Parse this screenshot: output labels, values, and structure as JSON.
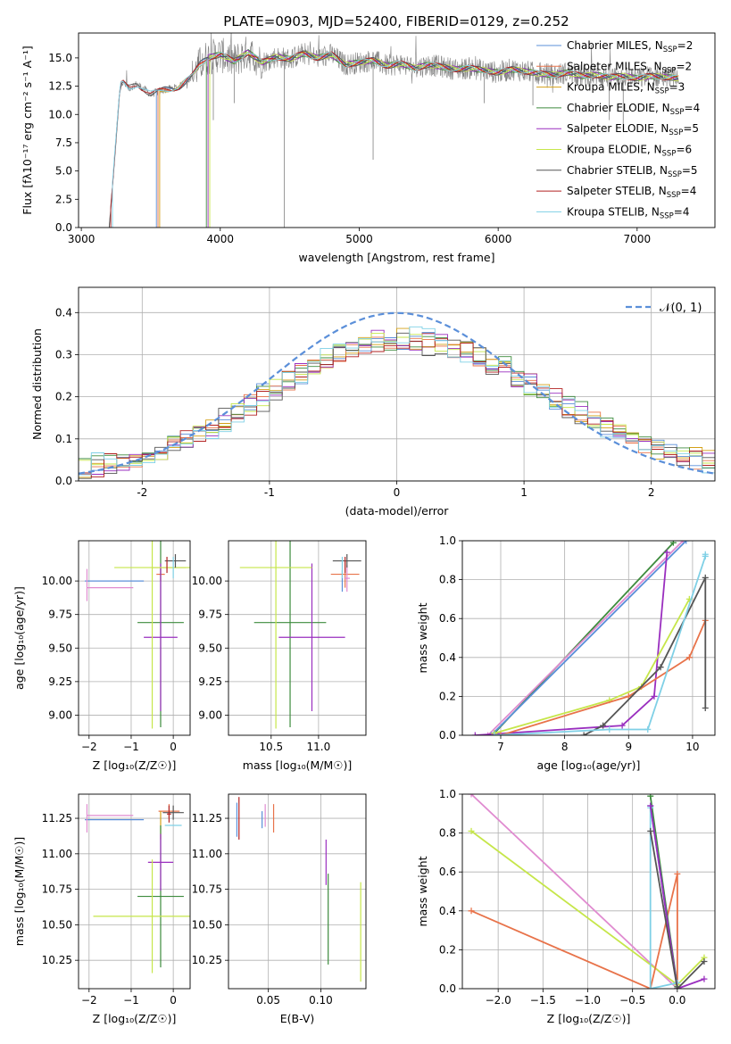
{
  "figure_title": "PLATE=0903, MJD=52400, FIBERID=0129, z=0.252",
  "model_colors": {
    "Chabrier MILES": "#5b8fd9",
    "Salpeter MILES": "#e8734a",
    "Kroupa MILES": "#d4a017",
    "Chabrier ELODIE": "#3d8b3d",
    "Salpeter ELODIE": "#9a2fbf",
    "Kroupa ELODIE": "#c6e64a",
    "Chabrier STELIB": "#555555",
    "Salpeter STELIB": "#b22222",
    "Kroupa STELIB": "#7fd0e6"
  },
  "chart_data": [
    {
      "id": "spectrum",
      "type": "line",
      "xlabel": "wavelength [Angstrom, rest frame]",
      "ylabel": "Flux [fλ10⁻¹⁷ erg cm⁻² s⁻¹ A⁻¹]",
      "xlim": [
        2980,
        7560
      ],
      "ylim": [
        0,
        17.2
      ],
      "xticks": [
        3000,
        4000,
        5000,
        6000,
        7000
      ],
      "yticks": [
        0.0,
        2.5,
        5.0,
        7.5,
        10.0,
        12.5,
        15.0
      ],
      "ytick_labels": [
        "0.0",
        "2.5",
        "5.0",
        "7.5",
        "10.0",
        "12.5",
        "15.0"
      ],
      "grid": false,
      "legend_position": "right",
      "legend": [
        {
          "label": "Chabrier MILES, N",
          "sub": "SSP",
          "suffix": "=2",
          "color": "#5b8fd9"
        },
        {
          "label": "Salpeter MILES, N",
          "sub": "SSP",
          "suffix": "=2",
          "color": "#e8734a"
        },
        {
          "label": "Kroupa MILES, N",
          "sub": "SSP",
          "suffix": "=3",
          "color": "#d4a017"
        },
        {
          "label": "Chabrier ELODIE, N",
          "sub": "SSP",
          "suffix": "=4",
          "color": "#3d8b3d"
        },
        {
          "label": "Salpeter ELODIE, N",
          "sub": "SSP",
          "suffix": "=5",
          "color": "#9a2fbf"
        },
        {
          "label": "Kroupa ELODIE, N",
          "sub": "SSP",
          "suffix": "=6",
          "color": "#c6e64a"
        },
        {
          "label": "Chabrier STELIB, N",
          "sub": "SSP",
          "suffix": "=5",
          "color": "#555555"
        },
        {
          "label": "Salpeter STELIB, N",
          "sub": "SSP",
          "suffix": "=4",
          "color": "#b22222"
        },
        {
          "label": "Kroupa STELIB, N",
          "sub": "SSP",
          "suffix": "=4",
          "color": "#7fd0e6"
        }
      ],
      "data_start_wavelength": 3200,
      "model_start_wavelengths": {
        "MILES": 3540,
        "ELODIE": 3900,
        "STELIB": 3200
      },
      "continuum_x": [
        3200,
        3280,
        3300,
        3340,
        3400,
        3500,
        3600,
        3700,
        3800,
        3850,
        3900,
        4000,
        4100,
        4200,
        4300,
        4400,
        4500,
        4600,
        4700,
        4800,
        4900,
        5000,
        5100,
        5200,
        5300,
        5400,
        5500,
        5600,
        5700,
        5800,
        5900,
        6000,
        6100,
        6200,
        6300,
        6400,
        6500,
        6600,
        6700,
        6800,
        6900,
        7000,
        7100,
        7200,
        7300
      ],
      "continuum_y": [
        0.0,
        12.6,
        12.8,
        12.3,
        12.7,
        11.8,
        12.2,
        12.4,
        13.4,
        14.4,
        15.0,
        15.3,
        14.7,
        15.5,
        14.6,
        15.1,
        14.9,
        15.4,
        15.0,
        15.3,
        14.4,
        14.6,
        14.8,
        14.3,
        14.5,
        14.1,
        14.4,
        14.2,
        14.0,
        14.1,
        13.9,
        13.7,
        14.0,
        13.8,
        13.6,
        13.5,
        13.7,
        13.4,
        13.5,
        13.3,
        13.4,
        13.2,
        13.4,
        13.3,
        13.2
      ],
      "dips": [
        {
          "x": 4460,
          "y": 0.0
        },
        {
          "x": 5100,
          "y": 6.0
        },
        {
          "x": 3950,
          "y": 9.5
        },
        {
          "x": 4100,
          "y": 11.0
        },
        {
          "x": 5900,
          "y": 11.0
        },
        {
          "x": 6250,
          "y": 10.8
        },
        {
          "x": 6800,
          "y": 9.5
        },
        {
          "x": 6900,
          "y": 8.5
        }
      ]
    },
    {
      "id": "residual_hist",
      "type": "histogram",
      "xlabel": "(data-model)/error",
      "ylabel": "Normed distribution",
      "xlim": [
        -2.5,
        2.5
      ],
      "ylim": [
        0,
        0.46
      ],
      "xticks": [
        -2,
        -1,
        0,
        1,
        2
      ],
      "yticks": [
        0.0,
        0.1,
        0.2,
        0.3,
        0.4
      ],
      "ytick_labels": [
        "0.0",
        "0.1",
        "0.2",
        "0.3",
        "0.4"
      ],
      "grid": true,
      "legend_position": "top-right",
      "legend": [
        {
          "label": "𝒩(0, 1)",
          "style": "dashed",
          "color": "#5b8fd9"
        }
      ],
      "bin_edges_start": -2.5,
      "bin_width": 0.1,
      "n_bins": 50,
      "reference_curve": "normal(0, 1) density",
      "base_distribution": [
        0.03,
        0.034,
        0.04,
        0.045,
        0.052,
        0.06,
        0.07,
        0.082,
        0.095,
        0.11,
        0.125,
        0.142,
        0.16,
        0.18,
        0.2,
        0.22,
        0.24,
        0.258,
        0.275,
        0.29,
        0.302,
        0.312,
        0.32,
        0.328,
        0.334,
        0.338,
        0.336,
        0.332,
        0.326,
        0.318,
        0.309,
        0.297,
        0.283,
        0.267,
        0.25,
        0.232,
        0.214,
        0.196,
        0.178,
        0.16,
        0.143,
        0.127,
        0.112,
        0.099,
        0.087,
        0.077,
        0.068,
        0.06,
        0.053,
        0.047
      ],
      "series_offsets": [
        {
          "color": "#5b8fd9",
          "shift": 0.01
        },
        {
          "color": "#e8734a",
          "shift": 0.004
        },
        {
          "color": "#d4a017",
          "shift": -0.002
        },
        {
          "color": "#3d8b3d",
          "shift": 0.008
        },
        {
          "color": "#9a2fbf",
          "shift": -0.006
        },
        {
          "color": "#c6e64a",
          "shift": 0.002
        },
        {
          "color": "#555555",
          "shift": -0.01
        },
        {
          "color": "#b22222",
          "shift": 0.0
        },
        {
          "color": "#7fd0e6",
          "shift": 0.012
        }
      ]
    },
    {
      "id": "age_vs_Z",
      "type": "errorbar",
      "xlabel": "Z [log₁₀(Z/Z☉)]",
      "ylabel": "age  [log₁₀(age/yr)]",
      "xlim": [
        -2.25,
        0.4
      ],
      "ylim": [
        8.85,
        10.3
      ],
      "xticks": [
        -2,
        -1,
        0
      ],
      "xtick_labels": [
        "−2",
        "−1",
        "0"
      ],
      "yticks": [
        9.0,
        9.25,
        9.5,
        9.75,
        10.0
      ],
      "ytick_labels": [
        "9.00",
        "9.25",
        "9.50",
        "9.75",
        "10.00"
      ],
      "grid": true,
      "points": [
        {
          "x": -1.4,
          "y": 10.0,
          "xerr": 0.7,
          "yerr": 0.0,
          "color": "#5b8fd9"
        },
        {
          "x": -1.5,
          "y": 9.95,
          "xerr": 0.55,
          "yerr": 0.0,
          "color": "#e08bd0"
        },
        {
          "x": -2.05,
          "y": 9.97,
          "xerr": 0.0,
          "yerr": 0.12,
          "color": "#e08bd0"
        },
        {
          "x": -0.3,
          "y": 10.05,
          "xerr": 0.1,
          "yerr": 0.05,
          "color": "#e8734a"
        },
        {
          "x": -0.1,
          "y": 10.1,
          "xerr": 0.4,
          "yerr": 0.0,
          "color": "#d4a017"
        },
        {
          "x": -0.3,
          "y": 9.69,
          "xerr": 0.55,
          "yerr": 0.78,
          "color": "#3d8b3d"
        },
        {
          "x": -0.3,
          "y": 9.58,
          "xerr": 0.4,
          "yerr": 0.55,
          "color": "#9a2fbf"
        },
        {
          "x": -0.5,
          "y": 10.1,
          "xerr": 0.9,
          "yerr": 1.2,
          "color": "#c6e64a"
        },
        {
          "x": 0.05,
          "y": 10.15,
          "xerr": 0.25,
          "yerr": 0.05,
          "color": "#555555"
        },
        {
          "x": -0.15,
          "y": 10.12,
          "xerr": 0.0,
          "yerr": 0.06,
          "color": "#b22222"
        },
        {
          "x": 0.0,
          "y": 10.1,
          "xerr": 0.0,
          "yerr": 0.08,
          "color": "#7fd0e6"
        }
      ]
    },
    {
      "id": "age_vs_mass",
      "type": "errorbar",
      "xlabel": "mass [log₁₀(M/M☉)]",
      "ylabel": "",
      "xlim": [
        10.05,
        11.5
      ],
      "ylim": [
        8.85,
        10.3
      ],
      "xticks": [
        10.5,
        11.0
      ],
      "xtick_labels": [
        "10.5",
        "11.0"
      ],
      "yticks": [
        9.0,
        9.25,
        9.5,
        9.75,
        10.0
      ],
      "ytick_labels": [
        "9.00",
        "9.25",
        "9.50",
        "9.75",
        "10.00"
      ],
      "grid": true,
      "points": [
        {
          "x": 11.25,
          "y": 10.0,
          "xerr": 0.0,
          "yerr": 0.08,
          "color": "#5b8fd9"
        },
        {
          "x": 11.28,
          "y": 10.05,
          "xerr": 0.15,
          "yerr": 0.1,
          "color": "#e8734a"
        },
        {
          "x": 11.3,
          "y": 10.02,
          "xerr": 0.03,
          "yerr": 0.1,
          "color": "#e08bd0"
        },
        {
          "x": 10.7,
          "y": 9.69,
          "xerr": 0.38,
          "yerr": 0.78,
          "color": "#3d8b3d"
        },
        {
          "x": 10.93,
          "y": 9.58,
          "xerr": 0.35,
          "yerr": 0.55,
          "color": "#9a2fbf"
        },
        {
          "x": 10.55,
          "y": 10.1,
          "xerr": 0.38,
          "yerr": 1.2,
          "color": "#c6e64a"
        },
        {
          "x": 11.3,
          "y": 10.15,
          "xerr": 0.15,
          "yerr": 0.05,
          "color": "#555555"
        },
        {
          "x": 11.28,
          "y": 10.12,
          "xerr": 0.0,
          "yerr": 0.06,
          "color": "#b22222"
        },
        {
          "x": 11.25,
          "y": 10.1,
          "xerr": 0.0,
          "yerr": 0.08,
          "color": "#7fd0e6"
        }
      ]
    },
    {
      "id": "mass_weight_vs_age",
      "type": "line",
      "xlabel": "age  [log₁₀(age/yr)]",
      "ylabel": "mass weight",
      "xlim": [
        6.4,
        10.35
      ],
      "ylim": [
        0.0,
        1.0
      ],
      "xticks": [
        7,
        8,
        9,
        10
      ],
      "yticks": [
        0.0,
        0.2,
        0.4,
        0.6,
        0.8,
        1.0
      ],
      "ytick_labels": [
        "0.0",
        "0.2",
        "0.4",
        "0.6",
        "0.8",
        "1.0"
      ],
      "grid": true,
      "series": [
        {
          "color": "#3d8b3d",
          "x": [
            6.9,
            9.7
          ],
          "y": [
            0.01,
            0.99
          ]
        },
        {
          "color": "#e08bd0",
          "x": [
            6.8,
            9.85
          ],
          "y": [
            0.0,
            1.0
          ]
        },
        {
          "color": "#5b8fd9",
          "x": [
            6.85,
            9.9
          ],
          "y": [
            0.0,
            1.0
          ]
        },
        {
          "color": "#9a2fbf",
          "x": [
            6.6,
            8.9,
            9.4,
            9.6
          ],
          "y": [
            0.0,
            0.05,
            0.2,
            0.94
          ]
        },
        {
          "color": "#c6e64a",
          "x": [
            6.9,
            8.7,
            9.2,
            9.95
          ],
          "y": [
            0.01,
            0.18,
            0.25,
            0.7
          ]
        },
        {
          "color": "#e8734a",
          "x": [
            7.0,
            9.0,
            9.95,
            10.2
          ],
          "y": [
            0.0,
            0.2,
            0.4,
            0.59
          ]
        },
        {
          "color": "#555555",
          "x": [
            8.3,
            8.6,
            9.5,
            10.2,
            10.2
          ],
          "y": [
            0.0,
            0.05,
            0.35,
            0.81,
            0.14
          ]
        },
        {
          "color": "#7fd0e6",
          "x": [
            6.9,
            8.7,
            9.3,
            10.2,
            10.2
          ],
          "y": [
            0.0,
            0.03,
            0.03,
            0.92,
            0.93
          ]
        }
      ]
    },
    {
      "id": "mass_vs_Z",
      "type": "errorbar",
      "xlabel": "Z [log₁₀(Z/Z☉)]",
      "ylabel": "mass [log₁₀(M/M☉)]",
      "xlim": [
        -2.25,
        0.4
      ],
      "ylim": [
        10.05,
        11.42
      ],
      "xticks": [
        -2,
        -1,
        0
      ],
      "xtick_labels": [
        "−2",
        "−1",
        "0"
      ],
      "yticks": [
        10.25,
        10.5,
        10.75,
        11.0,
        11.25
      ],
      "ytick_labels": [
        "10.25",
        "10.50",
        "10.75",
        "11.00",
        "11.25"
      ],
      "grid": true,
      "points": [
        {
          "x": -1.4,
          "y": 11.24,
          "xerr": 0.7,
          "yerr": 0.0,
          "color": "#5b8fd9"
        },
        {
          "x": -1.5,
          "y": 11.27,
          "xerr": 0.55,
          "yerr": 0.0,
          "color": "#e08bd0"
        },
        {
          "x": -2.05,
          "y": 11.25,
          "xerr": 0.0,
          "yerr": 0.1,
          "color": "#e08bd0"
        },
        {
          "x": -0.1,
          "y": 11.3,
          "xerr": 0.25,
          "yerr": 0.05,
          "color": "#e8734a"
        },
        {
          "x": -0.3,
          "y": 11.2,
          "xerr": 0.0,
          "yerr": 0.1,
          "color": "#d4a017"
        },
        {
          "x": -0.3,
          "y": 10.7,
          "xerr": 0.55,
          "yerr": 0.5,
          "color": "#3d8b3d"
        },
        {
          "x": -0.3,
          "y": 10.94,
          "xerr": 0.3,
          "yerr": 0.2,
          "color": "#9a2fbf"
        },
        {
          "x": -0.5,
          "y": 10.56,
          "xerr": 1.4,
          "yerr": 0.4,
          "color": "#c6e64a"
        },
        {
          "x": 0.0,
          "y": 11.29,
          "xerr": 0.25,
          "yerr": 0.05,
          "color": "#555555"
        },
        {
          "x": -0.1,
          "y": 11.28,
          "xerr": 0.05,
          "yerr": 0.06,
          "color": "#b22222"
        },
        {
          "x": 0.0,
          "y": 11.2,
          "xerr": 0.2,
          "yerr": 0.0,
          "color": "#7fd0e6"
        }
      ]
    },
    {
      "id": "mass_vs_EBV",
      "type": "errorbar",
      "xlabel": "E(B-V)",
      "ylabel": "",
      "xlim": [
        0.012,
        0.143
      ],
      "ylim": [
        10.05,
        11.42
      ],
      "xticks": [
        0.05,
        0.1
      ],
      "xtick_labels": [
        "0.05",
        "0.10"
      ],
      "yticks": [
        10.25,
        10.5,
        10.75,
        11.0,
        11.25
      ],
      "ytick_labels": [
        "10.25",
        "10.50",
        "10.75",
        "11.00",
        "11.25"
      ],
      "grid": true,
      "points": [
        {
          "x": 0.02,
          "y": 11.24,
          "xerr": 0.0,
          "yerr": 0.12,
          "color": "#5b8fd9"
        },
        {
          "x": 0.022,
          "y": 11.25,
          "xerr": 0.0,
          "yerr": 0.15,
          "color": "#b22222"
        },
        {
          "x": 0.044,
          "y": 11.24,
          "xerr": 0.0,
          "yerr": 0.06,
          "color": "#5b8fd9"
        },
        {
          "x": 0.047,
          "y": 11.27,
          "xerr": 0.0,
          "yerr": 0.08,
          "color": "#e08bd0"
        },
        {
          "x": 0.055,
          "y": 11.25,
          "xerr": 0.0,
          "yerr": 0.1,
          "color": "#e8734a"
        },
        {
          "x": 0.105,
          "y": 10.94,
          "xerr": 0.0,
          "yerr": 0.16,
          "color": "#9a2fbf"
        },
        {
          "x": 0.107,
          "y": 10.54,
          "xerr": 0.0,
          "yerr": 0.32,
          "color": "#3d8b3d"
        },
        {
          "x": 0.138,
          "y": 10.45,
          "xerr": 0.0,
          "yerr": 0.35,
          "color": "#c6e64a"
        }
      ]
    },
    {
      "id": "mass_weight_vs_Z",
      "type": "line",
      "xlabel": "Z [log₁₀(Z/Z☉)]",
      "ylabel": "mass weight",
      "xlim": [
        -2.4,
        0.42
      ],
      "ylim": [
        0.0,
        1.0
      ],
      "xticks": [
        -2.0,
        -1.5,
        -1.0,
        -0.5,
        0.0
      ],
      "xtick_labels": [
        "−2.0",
        "−1.5",
        "−1.0",
        "−0.5",
        "0.0"
      ],
      "yticks": [
        0.0,
        0.2,
        0.4,
        0.6,
        0.8,
        1.0
      ],
      "ytick_labels": [
        "0.0",
        "0.2",
        "0.4",
        "0.6",
        "0.8",
        "1.0"
      ],
      "grid": true,
      "series": [
        {
          "color": "#e08bd0",
          "x": [
            -2.3,
            0.0
          ],
          "y": [
            1.0,
            0.0
          ]
        },
        {
          "color": "#c6e64a",
          "x": [
            -2.3,
            0.0,
            0.3
          ],
          "y": [
            0.81,
            0.02,
            0.16
          ]
        },
        {
          "color": "#e8734a",
          "x": [
            -2.3,
            -0.3,
            0.0,
            0.0
          ],
          "y": [
            0.4,
            0.0,
            0.59,
            0.0
          ]
        },
        {
          "color": "#3d8b3d",
          "x": [
            -0.3,
            0.0
          ],
          "y": [
            0.99,
            0.01
          ]
        },
        {
          "color": "#5b8fd9",
          "x": [
            -0.3,
            0.0
          ],
          "y": [
            0.94,
            0.0
          ]
        },
        {
          "color": "#7fd0e6",
          "x": [
            -0.3,
            -0.3,
            0.0
          ],
          "y": [
            0.93,
            0.0,
            0.03
          ]
        },
        {
          "color": "#9a2fbf",
          "x": [
            -0.3,
            0.0,
            0.3
          ],
          "y": [
            0.94,
            0.0,
            0.05
          ]
        },
        {
          "color": "#555555",
          "x": [
            -0.3,
            0.0,
            0.3
          ],
          "y": [
            0.81,
            0.0,
            0.14
          ]
        }
      ]
    }
  ]
}
